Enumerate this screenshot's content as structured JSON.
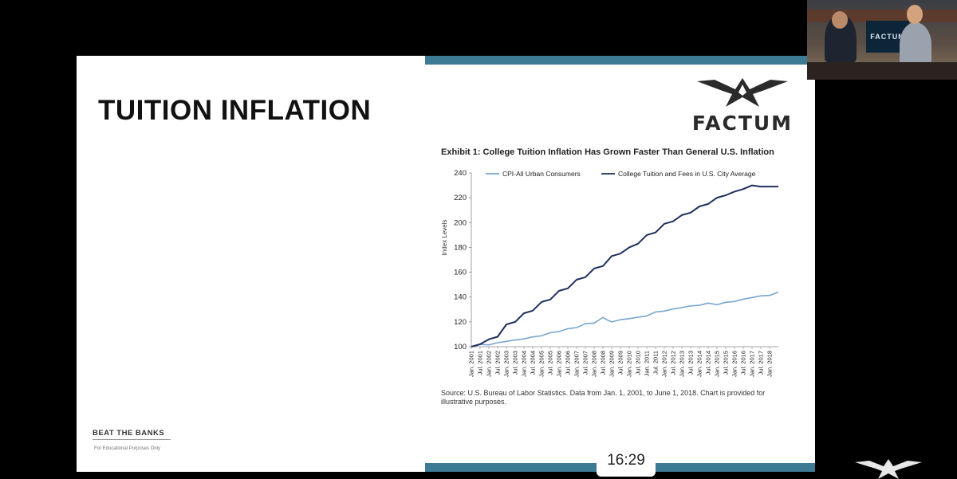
{
  "slide": {
    "title": "TUITION INFLATION",
    "logo_text": "FACTUM",
    "footer_brand": "BEAT THE BANKS",
    "footer_sub": "For Educational Purposes Only"
  },
  "exhibit_title": "Exhibit 1: College Tuition Inflation Has Grown Faster Than General U.S. Inflation",
  "source_note": "Source: U.S. Bureau of Labor Statistics.  Data from Jan. 1, 2001, to June 1, 2018.  Chart is provided for illustrative purposes.",
  "webcam": {
    "screen_text": "FACTUM"
  },
  "timer": {
    "time": "16:29"
  },
  "colors": {
    "accent": "#3d7a93",
    "cpi_line": "#7aa6cf",
    "tuition_line": "#1f2f5e"
  },
  "chart_data": {
    "type": "line",
    "title": "Exhibit 1: College Tuition Inflation Has Grown Faster Than General U.S. Inflation",
    "ylabel": "Index Levels",
    "xlabel": "",
    "ylim": [
      100,
      240
    ],
    "yticks": [
      100,
      120,
      140,
      160,
      180,
      200,
      220,
      240
    ],
    "legend_position": "top",
    "x_tick_labels": [
      "Jan. 2001",
      "Jul. 2001",
      "Jan. 2002",
      "Jul. 2002",
      "Jan. 2003",
      "Jul. 2003",
      "Jan. 2004",
      "Jul. 2004",
      "Jan. 2005",
      "Jul. 2005",
      "Jan. 2006",
      "Jul. 2006",
      "Jan. 2007",
      "Jul. 2007",
      "Jan. 2008",
      "Jul. 2008",
      "Jan. 2009",
      "Jul. 2009",
      "Jan. 2010",
      "Jul. 2010",
      "Jan. 2011",
      "Jul. 2011",
      "Jan. 2012",
      "Jul. 2012",
      "Jan. 2013",
      "Jul. 2013",
      "Jan. 2014",
      "Jul. 2014",
      "Jan. 2015",
      "Jul. 2015",
      "Jan. 2016",
      "Jul. 2016",
      "Jan. 2017",
      "Jul. 2017",
      "Jan. 2018"
    ],
    "series": [
      {
        "name": "CPI-All Urban Consumers",
        "color": "#7aa6cf",
        "x": [
          2001.0,
          2001.5,
          2002.0,
          2002.5,
          2003.0,
          2003.5,
          2004.0,
          2004.5,
          2005.0,
          2005.5,
          2006.0,
          2006.5,
          2007.0,
          2007.5,
          2008.0,
          2008.5,
          2008.75,
          2009.0,
          2009.5,
          2010.0,
          2010.5,
          2011.0,
          2011.5,
          2012.0,
          2012.5,
          2013.0,
          2013.5,
          2014.0,
          2014.5,
          2015.0,
          2015.5,
          2016.0,
          2016.5,
          2017.0,
          2017.5,
          2018.0,
          2018.5
        ],
        "values": [
          100,
          101.8,
          101.5,
          103.2,
          104.3,
          105.4,
          106.3,
          107.9,
          108.8,
          111.3,
          112.2,
          114.5,
          115.4,
          118.5,
          119.1,
          123.6,
          121.5,
          120.0,
          121.8,
          122.6,
          123.8,
          124.8,
          128.0,
          128.7,
          130.4,
          131.5,
          132.9,
          133.3,
          135.1,
          133.8,
          135.8,
          136.4,
          138.3,
          139.6,
          141.0,
          141.3,
          144.0
        ]
      },
      {
        "name": "College Tuition and Fees in U.S. City Average",
        "color": "#1f2f5e",
        "x": [
          2001.0,
          2001.5,
          2002.0,
          2002.5,
          2003.0,
          2003.5,
          2004.0,
          2004.5,
          2005.0,
          2005.5,
          2006.0,
          2006.5,
          2007.0,
          2007.5,
          2008.0,
          2008.5,
          2009.0,
          2009.5,
          2010.0,
          2010.5,
          2011.0,
          2011.5,
          2012.0,
          2012.5,
          2013.0,
          2013.5,
          2014.0,
          2014.5,
          2015.0,
          2015.5,
          2016.0,
          2016.5,
          2017.0,
          2017.5,
          2018.0,
          2018.5
        ],
        "values": [
          100,
          102,
          106,
          108,
          118,
          120,
          127,
          129,
          136,
          138,
          145,
          147,
          154,
          156,
          163,
          165,
          173,
          175,
          180,
          183,
          190,
          192,
          199,
          201,
          206,
          208,
          213,
          215,
          220,
          222,
          225,
          227,
          230,
          229,
          229,
          229
        ]
      }
    ]
  }
}
